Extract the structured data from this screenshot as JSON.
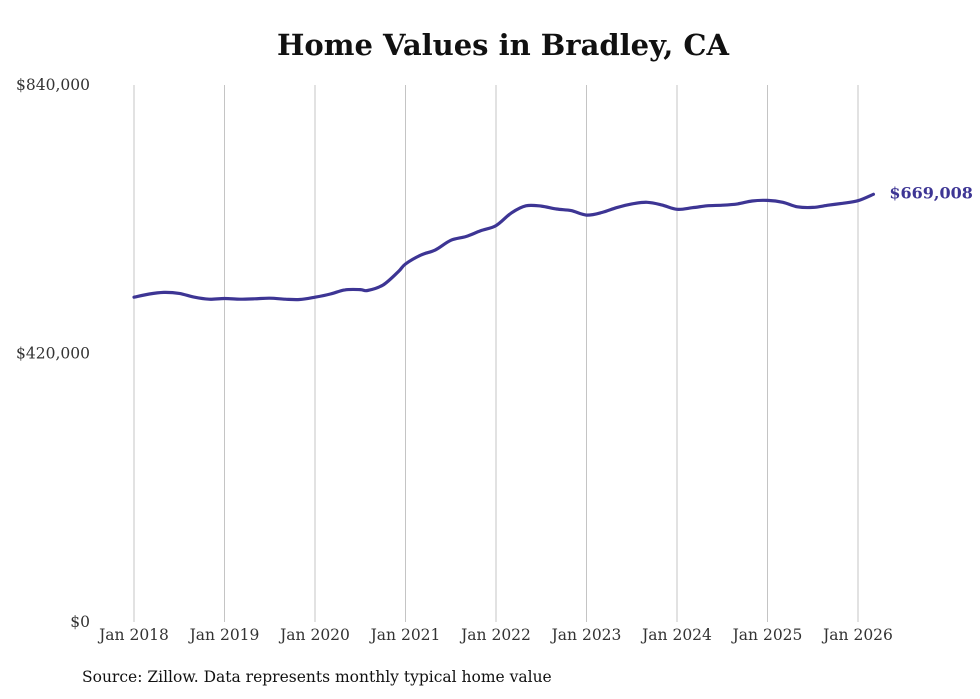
{
  "chart_data": {
    "type": "line",
    "title": "Home Values in Bradley, CA",
    "xlabel": "",
    "ylabel": "",
    "ylim": [
      0,
      840000
    ],
    "y_ticks": [
      {
        "value": 0,
        "label": "$0"
      },
      {
        "value": 420000,
        "label": "$420,000"
      },
      {
        "value": 840000,
        "label": "$840,000"
      }
    ],
    "x_ticks": [
      {
        "value": 2018,
        "label": "Jan 2018"
      },
      {
        "value": 2019,
        "label": "Jan 2019"
      },
      {
        "value": 2020,
        "label": "Jan 2020"
      },
      {
        "value": 2021,
        "label": "Jan 2021"
      },
      {
        "value": 2022,
        "label": "Jan 2022"
      },
      {
        "value": 2023,
        "label": "Jan 2023"
      },
      {
        "value": 2024,
        "label": "Jan 2024"
      },
      {
        "value": 2025,
        "label": "Jan 2025"
      },
      {
        "value": 2026,
        "label": "Jan 2026"
      }
    ],
    "xlim": [
      2018,
      2026.17
    ],
    "grid": "vertical",
    "series": [
      {
        "name": "Typical home value",
        "color": "#3d3594",
        "end_label": "$669,008",
        "points": [
          [
            2018.0,
            508000
          ],
          [
            2018.17,
            513000
          ],
          [
            2018.33,
            515500
          ],
          [
            2018.5,
            514000
          ],
          [
            2018.67,
            508000
          ],
          [
            2018.83,
            505000
          ],
          [
            2019.0,
            506000
          ],
          [
            2019.17,
            505000
          ],
          [
            2019.33,
            505500
          ],
          [
            2019.5,
            506500
          ],
          [
            2019.67,
            505000
          ],
          [
            2019.83,
            504500
          ],
          [
            2020.0,
            508000
          ],
          [
            2020.17,
            513000
          ],
          [
            2020.33,
            519500
          ],
          [
            2020.5,
            520000
          ],
          [
            2020.58,
            518500
          ],
          [
            2020.75,
            527000
          ],
          [
            2020.92,
            548000
          ],
          [
            2021.0,
            560000
          ],
          [
            2021.17,
            574000
          ],
          [
            2021.33,
            582000
          ],
          [
            2021.5,
            597000
          ],
          [
            2021.67,
            603000
          ],
          [
            2021.83,
            612000
          ],
          [
            2022.0,
            620000
          ],
          [
            2022.17,
            640000
          ],
          [
            2022.33,
            651000
          ],
          [
            2022.5,
            650500
          ],
          [
            2022.67,
            646000
          ],
          [
            2022.83,
            643500
          ],
          [
            2023.0,
            636500
          ],
          [
            2023.17,
            640500
          ],
          [
            2023.33,
            648000
          ],
          [
            2023.5,
            654000
          ],
          [
            2023.67,
            656500
          ],
          [
            2023.83,
            652500
          ],
          [
            2024.0,
            645500
          ],
          [
            2024.17,
            648000
          ],
          [
            2024.33,
            651000
          ],
          [
            2024.5,
            652000
          ],
          [
            2024.67,
            654000
          ],
          [
            2024.83,
            658500
          ],
          [
            2025.0,
            659500
          ],
          [
            2025.17,
            656500
          ],
          [
            2025.33,
            649500
          ],
          [
            2025.5,
            648500
          ],
          [
            2025.67,
            652000
          ],
          [
            2025.83,
            655000
          ],
          [
            2026.0,
            659000
          ],
          [
            2026.17,
            669008
          ]
        ]
      }
    ]
  },
  "footer": {
    "source": "Source: Zillow. Data represents monthly typical home value"
  }
}
